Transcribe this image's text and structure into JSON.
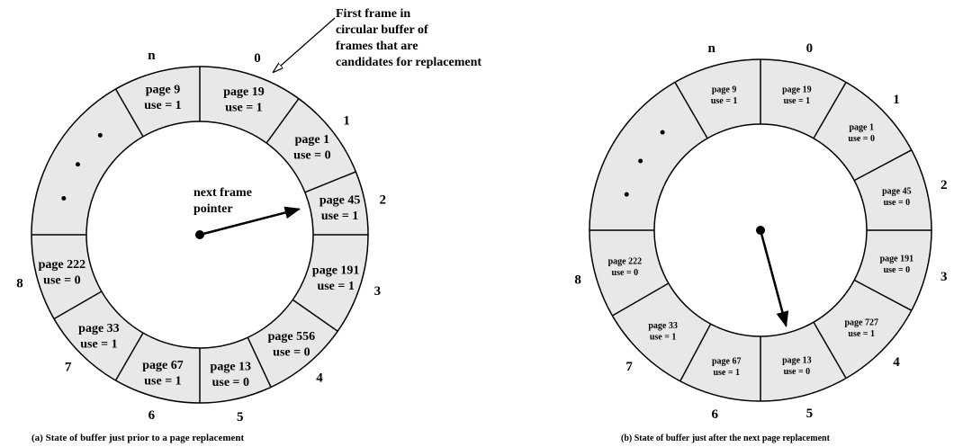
{
  "annotation": [
    "First frame in",
    "circular buffer of",
    "frames that are",
    "candidates for replacement"
  ],
  "pointer_label": [
    "next frame",
    "pointer"
  ],
  "panels": [
    {
      "caption": "(a) State of buffer just prior to a page replacement",
      "segments": [
        {
          "position": "0",
          "page": "page 19",
          "use": "use = 1"
        },
        {
          "position": "1",
          "page": "page 1",
          "use": "use = 0"
        },
        {
          "position": "2",
          "page": "page 45",
          "use": "use = 1"
        },
        {
          "position": "3",
          "page": "page 191",
          "use": "use = 1"
        },
        {
          "position": "4",
          "page": "page 556",
          "use": "use = 0"
        },
        {
          "position": "5",
          "page": "page 13",
          "use": "use = 0"
        },
        {
          "position": "6",
          "page": "page 67",
          "use": "use = 1"
        },
        {
          "position": "7",
          "page": "page 33",
          "use": "use = 1"
        },
        {
          "position": "8",
          "page": "page 222",
          "use": "use = 0"
        },
        {
          "position": "n",
          "page": "page 9",
          "use": "use = 1"
        }
      ]
    },
    {
      "caption": "(b) State of buffer just after the next page replacement",
      "segments": [
        {
          "position": "0",
          "page": "page 19",
          "use": "use = 1"
        },
        {
          "position": "1",
          "page": "page 1",
          "use": "use = 0"
        },
        {
          "position": "2",
          "page": "page 45",
          "use": "use = 0"
        },
        {
          "position": "3",
          "page": "page 191",
          "use": "use = 0"
        },
        {
          "position": "4",
          "page": "page 727",
          "use": "use = 1"
        },
        {
          "position": "5",
          "page": "page 13",
          "use": "use = 0"
        },
        {
          "position": "6",
          "page": "page 67",
          "use": "use = 1"
        },
        {
          "position": "7",
          "page": "page 33",
          "use": "use = 1"
        },
        {
          "position": "8",
          "page": "page 222",
          "use": "use = 0"
        },
        {
          "position": "n",
          "page": "page 9",
          "use": "use = 1"
        }
      ]
    }
  ]
}
